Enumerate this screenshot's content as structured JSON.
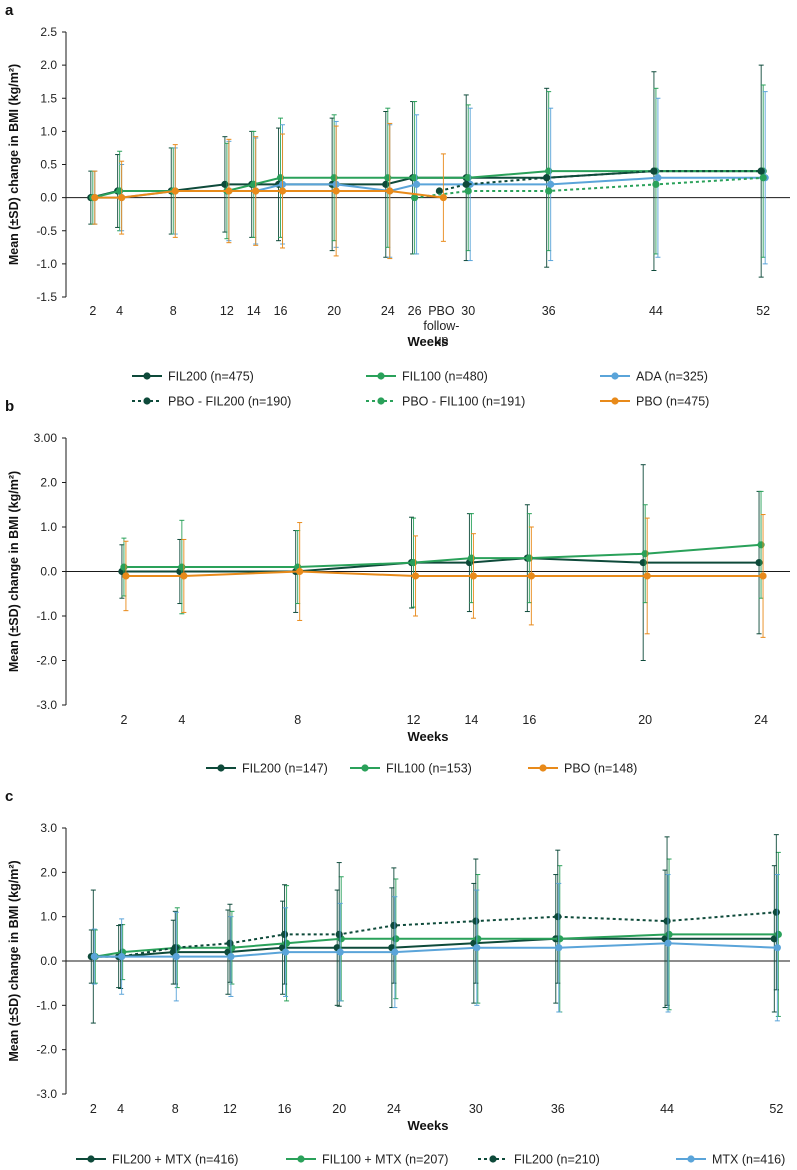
{
  "colors": {
    "fil200": "#0e4a3a",
    "fil100": "#2aa15a",
    "ada": "#5aa4d9",
    "pbo": "#e88a1a",
    "pbo_fil200": "#0e4a3a",
    "pbo_fil100": "#2aa15a",
    "mtx": "#5aa4d9",
    "fil200_mono": "#0e4a3a",
    "axis": "#1a1a1a"
  },
  "chart_data": [
    {
      "panel": "a",
      "type": "line",
      "ylabel": "Mean (±SD) change in BMI (kg/m²)",
      "xlabel": "Weeks",
      "ylim": [
        -1.5,
        2.5
      ],
      "yticks": [
        "2.5",
        "2.0",
        "1.5",
        "1.0",
        "0.5",
        "0.0",
        "-0.5",
        "-1.0",
        "-1.5"
      ],
      "ytick_values": [
        2.5,
        2.0,
        1.5,
        1.0,
        0.5,
        0.0,
        -0.5,
        -1.0,
        -1.5
      ],
      "xlim": [
        0,
        54
      ],
      "xticks": [
        {
          "label": "2",
          "x": 2
        },
        {
          "label": "4",
          "x": 4
        },
        {
          "label": "8",
          "x": 8
        },
        {
          "label": "12",
          "x": 12
        },
        {
          "label": "14",
          "x": 14
        },
        {
          "label": "16",
          "x": 16
        },
        {
          "label": "20",
          "x": 20
        },
        {
          "label": "24",
          "x": 24
        },
        {
          "label": "26",
          "x": 26
        },
        {
          "label": "PBO",
          "x": 28
        },
        {
          "label": "30",
          "x": 30
        },
        {
          "label": "36",
          "x": 36
        },
        {
          "label": "44",
          "x": 44
        },
        {
          "label": "52",
          "x": 52
        }
      ],
      "pbo_followup_lines": [
        "follow-",
        "up"
      ],
      "series": [
        {
          "key": "fil200",
          "name": "FIL200 (n=475)",
          "style": "solid",
          "x": [
            2,
            4,
            8,
            12,
            14,
            16,
            20,
            24,
            26,
            30,
            36,
            44,
            52
          ],
          "y": [
            0.0,
            0.1,
            0.1,
            0.2,
            0.2,
            0.2,
            0.2,
            0.2,
            0.3,
            0.3,
            0.3,
            0.4,
            0.4
          ],
          "sd": [
            0.4,
            0.55,
            0.65,
            0.72,
            0.8,
            0.85,
            1.0,
            1.1,
            1.15,
            1.25,
            1.35,
            1.5,
            1.6
          ]
        },
        {
          "key": "fil100",
          "name": "FIL100 (n=480)",
          "style": "solid",
          "x": [
            2,
            4,
            8,
            12,
            14,
            16,
            20,
            24,
            26,
            30,
            36,
            44,
            52
          ],
          "y": [
            0.0,
            0.1,
            0.1,
            0.1,
            0.2,
            0.3,
            0.3,
            0.3,
            0.3,
            0.3,
            0.4,
            0.4,
            0.4
          ],
          "sd": [
            0.4,
            0.6,
            0.65,
            0.72,
            0.8,
            0.9,
            0.95,
            1.05,
            1.15,
            1.1,
            1.2,
            1.25,
            1.3
          ]
        },
        {
          "key": "ada",
          "name": "ADA (n=325)",
          "style": "solid",
          "x": [
            2,
            4,
            8,
            12,
            14,
            16,
            20,
            24,
            26,
            30,
            36,
            44,
            52
          ],
          "y": [
            0.0,
            0.0,
            0.1,
            0.1,
            0.1,
            0.2,
            0.2,
            0.1,
            0.2,
            0.2,
            0.2,
            0.3,
            0.3
          ],
          "sd": [
            0.4,
            0.5,
            0.65,
            0.75,
            0.8,
            0.9,
            0.95,
            1.0,
            1.05,
            1.15,
            1.15,
            1.2,
            1.3
          ]
        },
        {
          "key": "pbo_fil200",
          "name": "PBO - FIL200 (n=190)",
          "style": "dotted",
          "x": [
            28,
            30,
            36,
            44,
            52
          ],
          "y": [
            0.1,
            0.2,
            0.3,
            0.4,
            0.4
          ],
          "sd": [
            0.0,
            0.0,
            0.0,
            0.0,
            0.0
          ]
        },
        {
          "key": "pbo_fil100",
          "name": "PBO - FIL100 (n=191)",
          "style": "dotted",
          "x": [
            26,
            30,
            36,
            44,
            52
          ],
          "y": [
            0.0,
            0.1,
            0.1,
            0.2,
            0.3
          ],
          "sd": [
            0.0,
            0.0,
            0.0,
            0.0,
            0.0
          ]
        },
        {
          "key": "pbo",
          "name": "PBO (n=475)",
          "style": "solid",
          "x": [
            2,
            4,
            8,
            12,
            14,
            16,
            20,
            24,
            28
          ],
          "y": [
            0.0,
            0.0,
            0.1,
            0.1,
            0.1,
            0.1,
            0.1,
            0.1,
            0.0
          ],
          "sd": [
            0.4,
            0.55,
            0.7,
            0.78,
            0.82,
            0.86,
            0.98,
            1.02,
            0.66
          ]
        }
      ]
    },
    {
      "panel": "b",
      "type": "line",
      "ylabel": "Mean (±SD) change in BMI (kg/m²)",
      "xlabel": "Weeks",
      "ylim": [
        -3.0,
        3.0
      ],
      "yticks": [
        "3.00",
        "2.0",
        "1.0",
        "0.0",
        "-1.0",
        "-2.0",
        "-3.0"
      ],
      "ytick_values": [
        3.0,
        2.0,
        1.0,
        0.0,
        -1.0,
        -2.0,
        -3.0
      ],
      "xlim": [
        0,
        25
      ],
      "xticks": [
        {
          "label": "2",
          "x": 2
        },
        {
          "label": "4",
          "x": 4
        },
        {
          "label": "8",
          "x": 8
        },
        {
          "label": "12",
          "x": 12
        },
        {
          "label": "14",
          "x": 14
        },
        {
          "label": "16",
          "x": 16
        },
        {
          "label": "20",
          "x": 20
        },
        {
          "label": "24",
          "x": 24
        }
      ],
      "series": [
        {
          "key": "fil200",
          "name": "FIL200 (n=147)",
          "style": "solid",
          "x": [
            2,
            4,
            8,
            12,
            14,
            16,
            20,
            24
          ],
          "y": [
            0.0,
            0.0,
            0.0,
            0.2,
            0.2,
            0.3,
            0.2,
            0.2
          ],
          "sd": [
            0.6,
            0.72,
            0.92,
            1.02,
            1.1,
            1.2,
            2.2,
            1.6
          ]
        },
        {
          "key": "fil100",
          "name": "FIL100 (n=153)",
          "style": "solid",
          "x": [
            2,
            4,
            8,
            12,
            14,
            16,
            20,
            24
          ],
          "y": [
            0.1,
            0.1,
            0.1,
            0.2,
            0.3,
            0.3,
            0.4,
            0.6
          ],
          "sd": [
            0.65,
            1.05,
            0.82,
            1.0,
            1.0,
            1.0,
            1.1,
            1.2
          ]
        },
        {
          "key": "pbo",
          "name": "PBO (n=148)",
          "style": "solid",
          "x": [
            2,
            4,
            8,
            12,
            14,
            16,
            20,
            24
          ],
          "y": [
            -0.1,
            -0.1,
            0.0,
            -0.1,
            -0.1,
            -0.1,
            -0.1,
            -0.1
          ],
          "sd": [
            0.78,
            0.82,
            1.1,
            0.9,
            0.95,
            1.1,
            1.3,
            1.38
          ]
        }
      ]
    },
    {
      "panel": "c",
      "type": "line",
      "ylabel": "Mean (±SD) change in BMI (kg/m²)",
      "xlabel": "Weeks",
      "ylim": [
        -3.0,
        3.0
      ],
      "yticks": [
        "3.0",
        "2.0",
        "1.0",
        "0.0",
        "-1.0",
        "-2.0",
        "-3.0"
      ],
      "ytick_values": [
        3.0,
        2.0,
        1.0,
        0.0,
        -1.0,
        -2.0,
        -3.0
      ],
      "xlim": [
        0,
        53
      ],
      "xticks": [
        {
          "label": "2",
          "x": 2
        },
        {
          "label": "4",
          "x": 4
        },
        {
          "label": "8",
          "x": 8
        },
        {
          "label": "12",
          "x": 12
        },
        {
          "label": "16",
          "x": 16
        },
        {
          "label": "20",
          "x": 20
        },
        {
          "label": "24",
          "x": 24
        },
        {
          "label": "30",
          "x": 30
        },
        {
          "label": "36",
          "x": 36
        },
        {
          "label": "44",
          "x": 44
        },
        {
          "label": "52",
          "x": 52
        }
      ],
      "series": [
        {
          "key": "fil200",
          "name": "FIL200 + MTX (n=416)",
          "style": "solid",
          "x": [
            2,
            4,
            8,
            12,
            16,
            20,
            24,
            30,
            36,
            44,
            52
          ],
          "y": [
            0.1,
            0.1,
            0.2,
            0.2,
            0.3,
            0.3,
            0.3,
            0.4,
            0.5,
            0.5,
            0.5
          ],
          "sd": [
            0.6,
            0.7,
            0.72,
            0.95,
            1.05,
            1.3,
            1.35,
            1.35,
            1.45,
            1.55,
            1.65
          ]
        },
        {
          "key": "fil100",
          "name": "FIL100 + MTX (n=207)",
          "style": "solid",
          "x": [
            2,
            4,
            8,
            12,
            16,
            20,
            24,
            30,
            36,
            44,
            52
          ],
          "y": [
            0.1,
            0.2,
            0.3,
            0.3,
            0.4,
            0.5,
            0.5,
            0.5,
            0.5,
            0.6,
            0.6
          ],
          "sd": [
            0.6,
            0.62,
            0.9,
            0.82,
            1.3,
            1.4,
            1.35,
            1.45,
            1.65,
            1.7,
            1.85
          ]
        },
        {
          "key": "fil200_mono",
          "name": "FIL200 (n=210)",
          "style": "dotted",
          "x": [
            2,
            4,
            8,
            12,
            16,
            20,
            24,
            30,
            36,
            44,
            52
          ],
          "y": [
            0.1,
            0.1,
            0.3,
            0.4,
            0.6,
            0.6,
            0.8,
            0.9,
            1.0,
            0.9,
            1.1
          ],
          "sd": [
            1.5,
            0.72,
            0.82,
            0.88,
            1.12,
            1.62,
            1.3,
            1.4,
            1.5,
            1.9,
            1.75
          ]
        },
        {
          "key": "mtx",
          "name": "MTX (n=416)",
          "style": "solid",
          "x": [
            2,
            4,
            8,
            12,
            16,
            20,
            24,
            30,
            36,
            44,
            52
          ],
          "y": [
            0.1,
            0.1,
            0.1,
            0.1,
            0.2,
            0.2,
            0.2,
            0.3,
            0.3,
            0.4,
            0.3
          ],
          "sd": [
            0.62,
            0.85,
            1.0,
            0.9,
            1.0,
            1.1,
            1.25,
            1.3,
            1.45,
            1.55,
            1.65
          ]
        }
      ]
    }
  ]
}
